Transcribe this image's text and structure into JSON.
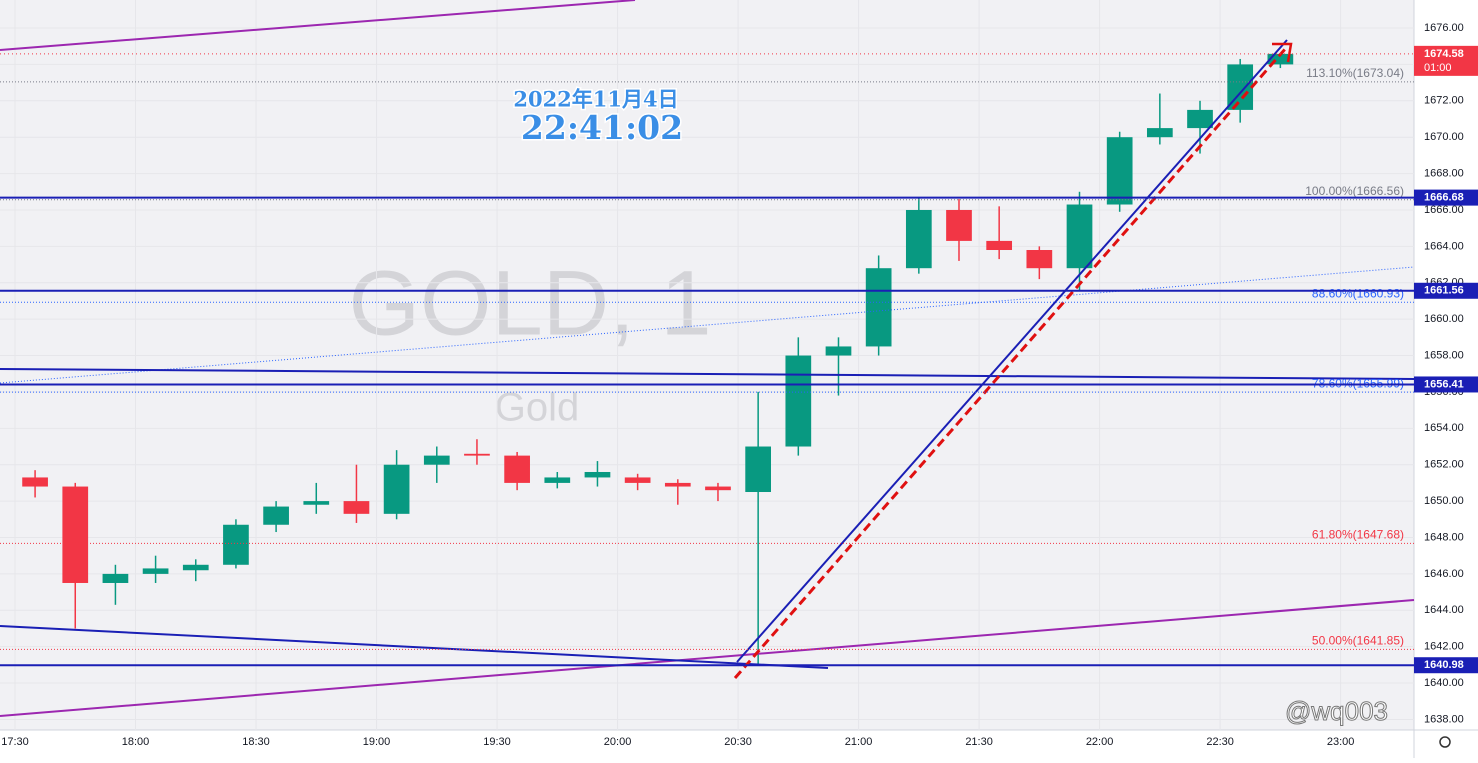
{
  "chart_data": {
    "type": "candlestick",
    "title": "GOLD, 1",
    "subtitle": "Gold",
    "date_text": "2022年11月4日",
    "time_text": "22:41:02",
    "watermark": "@wq003",
    "categories": [
      "17:30",
      null,
      null,
      "18:00",
      null,
      null,
      "18:30",
      null,
      null,
      "19:00",
      null,
      null,
      "19:30",
      null,
      null,
      "20:00",
      null,
      null,
      "20:30",
      null,
      null,
      "21:00",
      null,
      null,
      "21:30",
      null,
      null,
      "22:00",
      null,
      null,
      "22:30",
      null,
      null,
      "23:00",
      null
    ],
    "open": [
      1651.3,
      1650.8,
      1645.5,
      1646,
      1646.2,
      1646.5,
      1648.7,
      1649.8,
      1650,
      1649.3,
      1652,
      1652.6,
      1652.5,
      1651,
      1651.3,
      1651.3,
      1651,
      1650.8,
      1650.5,
      1653,
      1658,
      1658.5,
      1662.8,
      1666,
      1664.3,
      1663.8,
      1662.8,
      1666.3,
      1670,
      1670.5,
      1671.5,
      1674,
      null,
      null,
      null
    ],
    "high": [
      1651.7,
      1651,
      1646.5,
      1647,
      1646.8,
      1649,
      1650,
      1651,
      1652,
      1652.8,
      1653,
      1653.4,
      1652.7,
      1651.6,
      1652.2,
      1651.5,
      1651.2,
      1651,
      1656,
      1659,
      1659,
      1663.5,
      1666.7,
      1666.6,
      1666.2,
      1664,
      1667,
      1670.3,
      1672.4,
      1672,
      1674.3,
      1674.6,
      null,
      null,
      null
    ],
    "low": [
      1650.2,
      1643,
      1644.3,
      1645.5,
      1645.6,
      1646.3,
      1648.3,
      1649.3,
      1648.8,
      1649,
      1651,
      1652,
      1650.6,
      1650.7,
      1650.8,
      1650.6,
      1649.8,
      1650,
      1640.98,
      1652.5,
      1655.8,
      1658,
      1662.5,
      1663.2,
      1663.3,
      1662.2,
      1661.56,
      1665.9,
      1669.6,
      1669.1,
      1670.8,
      1673.8,
      null,
      null,
      null
    ],
    "close": [
      1650.8,
      1645.5,
      1646,
      1646.3,
      1646.5,
      1648.7,
      1649.7,
      1650,
      1649.3,
      1652,
      1652.5,
      1652.5,
      1651,
      1651.3,
      1651.6,
      1651,
      1650.8,
      1650.6,
      1653,
      1658,
      1658.5,
      1662.8,
      1666,
      1664.3,
      1663.8,
      1662.8,
      1666.3,
      1670,
      1670.5,
      1671.5,
      1674,
      1674.58,
      null,
      null,
      null
    ],
    "up_color": "#089981",
    "down_color": "#f23645",
    "ylim": [
      1637.42,
      1677.54
    ],
    "yticks": [
      {
        "value": 1638,
        "label": "1638.00"
      },
      {
        "value": 1640,
        "label": "1640.00"
      },
      {
        "value": 1642,
        "label": "1642.00"
      },
      {
        "value": 1644,
        "label": "1644.00"
      },
      {
        "value": 1646,
        "label": "1646.00"
      },
      {
        "value": 1648,
        "label": "1648.00"
      },
      {
        "value": 1650,
        "label": "1650.00"
      },
      {
        "value": 1652,
        "label": "1652.00"
      },
      {
        "value": 1654,
        "label": "1654.00"
      },
      {
        "value": 1656,
        "label": "1656.00"
      },
      {
        "value": 1658,
        "label": "1658.00"
      },
      {
        "value": 1660,
        "label": "1660.00"
      },
      {
        "value": 1662,
        "label": "1662.00"
      },
      {
        "value": 1664,
        "label": "1664.00"
      },
      {
        "value": 1666,
        "label": "1666.00"
      },
      {
        "value": 1668,
        "label": "1668.00"
      },
      {
        "value": 1670,
        "label": "1670.00"
      },
      {
        "value": 1672,
        "label": "1672.00"
      },
      {
        "value": 1674,
        "label": "1674.00"
      },
      {
        "value": 1676,
        "label": "1676.00"
      }
    ],
    "fib_levels": [
      {
        "value": 1673.04,
        "label": "113.10%(1673.04)",
        "color": "#787b86"
      },
      {
        "value": 1666.56,
        "label": "100.00%(1666.56)",
        "color": "#787b86"
      },
      {
        "value": 1660.93,
        "label": "88.60%(1660.93)",
        "color": "#2962ff"
      },
      {
        "value": 1655.99,
        "label": "78.60%(1655.99)",
        "color": "#2962ff"
      },
      {
        "value": 1647.68,
        "label": "61.80%(1647.68)",
        "color": "#f23645"
      },
      {
        "value": 1641.85,
        "label": "50.00%(1641.85)",
        "color": "#f23645"
      }
    ],
    "price_lines": [
      1666.68,
      1661.56,
      1656.41,
      1640.98
    ],
    "price_line_color": "#1a1fb5",
    "last_price": {
      "value": 1674.58,
      "countdown": "01:00",
      "color": "#f23645"
    }
  }
}
